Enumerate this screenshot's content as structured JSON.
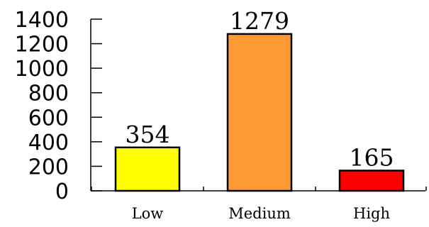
{
  "chart_data": {
    "type": "bar",
    "title": "",
    "xlabel": "",
    "ylabel": "",
    "categories": [
      "Low",
      "Medium",
      "High"
    ],
    "values": [
      354,
      1279,
      165
    ],
    "data_labels": [
      "354",
      "1279",
      "165"
    ],
    "colors": [
      "#ffff00",
      "#ff9933",
      "#ff0000"
    ],
    "ylim": [
      0,
      1400
    ],
    "yticks": [
      0,
      200,
      400,
      600,
      800,
      1000,
      1200,
      1400
    ],
    "ytick_labels": [
      "0",
      "200",
      "400",
      "600",
      "800",
      "1000",
      "1200",
      "1400"
    ],
    "grid": false,
    "legend": "none"
  }
}
